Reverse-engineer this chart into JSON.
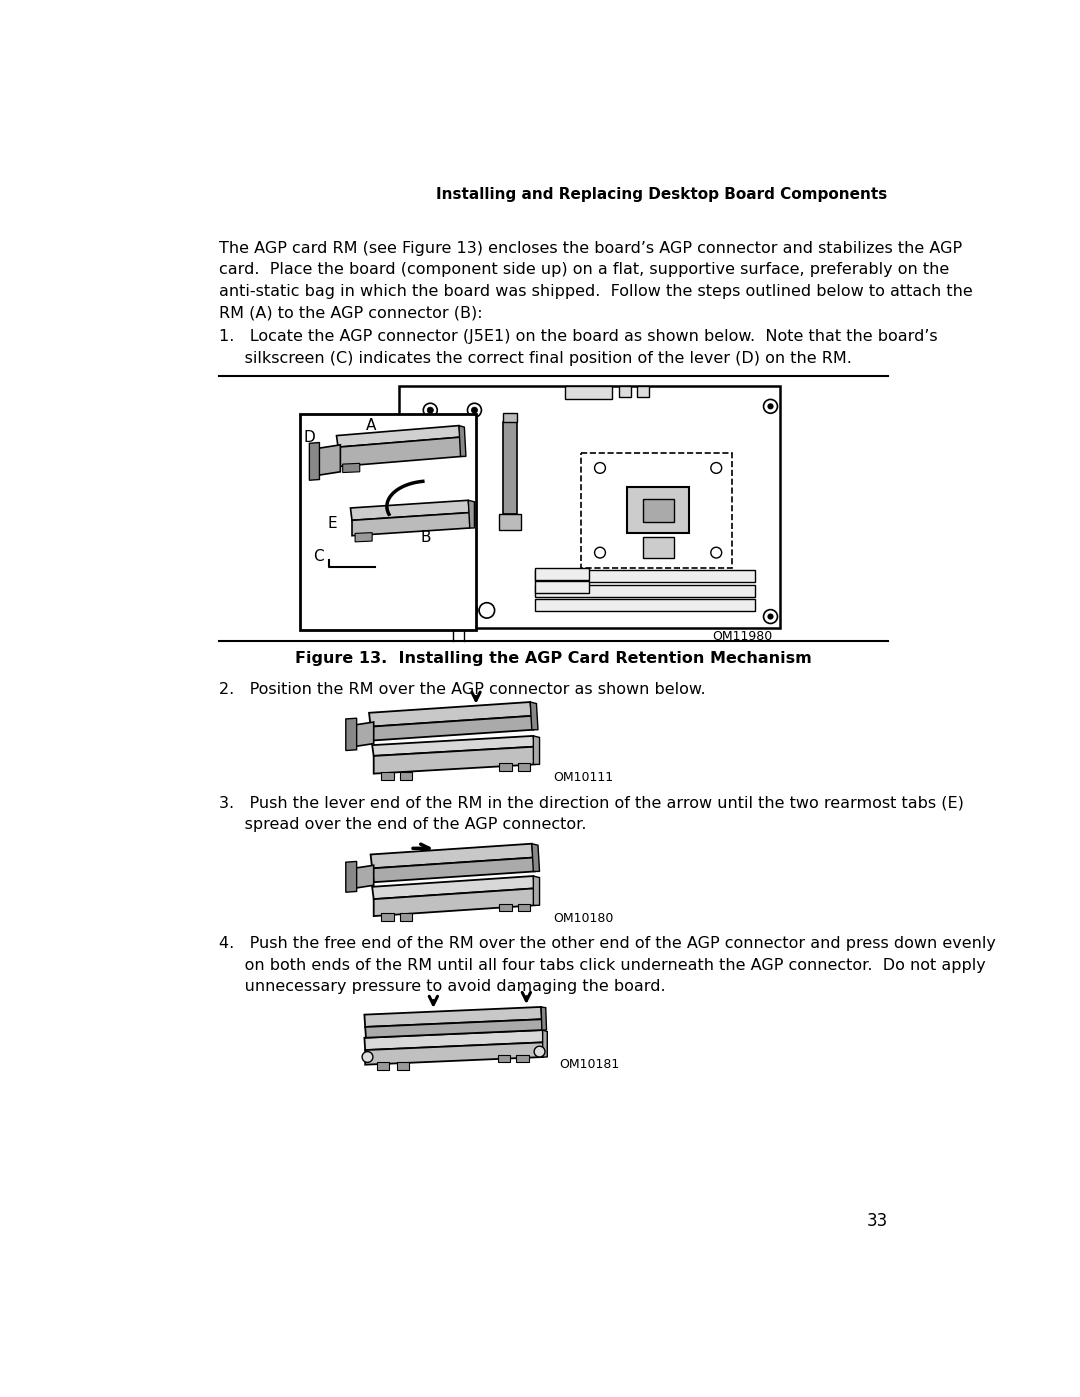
{
  "header_text": "Installing and Replacing Desktop Board Components",
  "page_number": "33",
  "bg_color": "#ffffff",
  "text_color": "#000000",
  "body_text_1": "The AGP card RM (see Figure 13) encloses the board’s AGP connector and stabilizes the AGP\ncard.  Place the board (component side up) on a flat, supportive surface, preferably on the\nanti-static bag in which the board was shipped.  Follow the steps outlined below to attach the\nRM (A) to the AGP connector (B):",
  "step1_text": "1.   Locate the AGP connector (J5E1) on the board as shown below.  Note that the board’s\n     silkscreen (C) indicates the correct final position of the lever (D) on the RM.",
  "step2_text": "2.   Position the RM over the AGP connector as shown below.",
  "step3_text": "3.   Push the lever end of the RM in the direction of the arrow until the two rearmost tabs (E)\n     spread over the end of the AGP connector.",
  "step4_text": "4.   Push the free end of the RM over the other end of the AGP connector and press down evenly\n     on both ends of the RM until all four tabs click underneath the AGP connector.  Do not apply\n     unnecessary pressure to avoid damaging the board.",
  "figure_caption": "Figure 13.  Installing the AGP Card Retention Mechanism",
  "figure_label_om11980": "OM11980",
  "figure_label_om10111": "OM10111",
  "figure_label_om10180": "OM10180",
  "figure_label_om10181": "OM10181",
  "separator_color": "#000000",
  "board_fill": "#ffffff",
  "board_edge": "#000000",
  "rm_fill": "#c8c8c8",
  "rm_dark": "#888888",
  "connector_fill": "#d8d8d8",
  "font_size_body": 11.5,
  "font_size_header": 11.0,
  "font_size_caption": 11.5,
  "font_size_label": 9.0,
  "font_size_page": 12,
  "font_size_steps": 11.5
}
